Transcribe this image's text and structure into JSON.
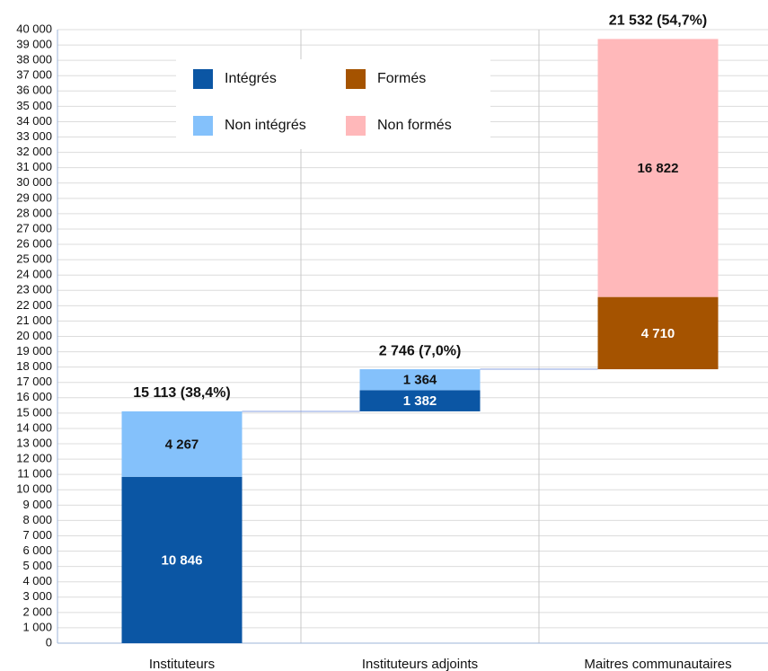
{
  "chart_data": {
    "type": "waterfall",
    "categories": [
      "Instituteurs",
      "Instituteurs adjoints",
      "Maitres communautaires"
    ],
    "series": [
      {
        "name": "Intégrés",
        "color": "#0b56a4",
        "values": [
          10846,
          1382,
          null
        ],
        "value_labels": [
          "10 846",
          "1 382",
          null
        ]
      },
      {
        "name": "Formés",
        "color": "#a55300",
        "values": [
          null,
          null,
          4710
        ],
        "value_labels": [
          null,
          null,
          "4 710"
        ]
      },
      {
        "name": "Non intégrés",
        "color": "#84c1fb",
        "values": [
          4267,
          1364,
          null
        ],
        "value_labels": [
          "4 267",
          "1 364",
          null
        ]
      },
      {
        "name": "Non formés",
        "color": "#ffb8ba",
        "values": [
          null,
          null,
          16822
        ],
        "value_labels": [
          null,
          null,
          "16 822"
        ]
      }
    ],
    "totals": [
      15113,
      2746,
      21532
    ],
    "total_labels": [
      "15 113 (38,4%)",
      "2 746 (7,0%)",
      "21 532 (54,7%)"
    ],
    "ylim": [
      0,
      40000
    ],
    "yticks": [
      0,
      {
        "value": 1000,
        "label": "1 000"
      },
      {
        "value": 2000,
        "label": "2 000"
      },
      {
        "value": 3000,
        "label": "3 000"
      },
      {
        "value": 4000,
        "label": "4 000"
      },
      {
        "value": 5000,
        "label": "5 000"
      },
      {
        "value": 6000,
        "label": "6 000"
      },
      {
        "value": 7000,
        "label": "7 000"
      },
      {
        "value": 8000,
        "label": "8 000"
      },
      {
        "value": 9000,
        "label": "9 000"
      },
      {
        "value": 10000,
        "label": "10 000"
      },
      {
        "value": 11000,
        "label": "11 000"
      },
      {
        "value": 12000,
        "label": "12 000"
      },
      {
        "value": 13000,
        "label": "13 000"
      },
      {
        "value": 14000,
        "label": "14 000"
      },
      {
        "value": 15000,
        "label": "15 000"
      },
      {
        "value": 16000,
        "label": "16 000"
      },
      {
        "value": 17000,
        "label": "17 000"
      },
      {
        "value": 18000,
        "label": "18 000"
      },
      {
        "value": 19000,
        "label": "19 000"
      },
      {
        "value": 20000,
        "label": "20 000"
      },
      {
        "value": 21000,
        "label": "21 000"
      },
      {
        "value": 22000,
        "label": "22 000"
      },
      {
        "value": 23000,
        "label": "23 000"
      },
      {
        "value": 24000,
        "label": "24 000"
      },
      {
        "value": 25000,
        "label": "25 000"
      },
      {
        "value": 26000,
        "label": "26 000"
      },
      {
        "value": 27000,
        "label": "27 000"
      },
      {
        "value": 28000,
        "label": "28 000"
      },
      {
        "value": 29000,
        "label": "29 000"
      },
      {
        "value": 30000,
        "label": "30 000"
      },
      {
        "value": 31000,
        "label": "31 000"
      },
      {
        "value": 32000,
        "label": "32 000"
      },
      {
        "value": 33000,
        "label": "33 000"
      },
      {
        "value": 34000,
        "label": "34 000"
      },
      {
        "value": 35000,
        "label": "35 000"
      },
      {
        "value": 36000,
        "label": "36 000"
      },
      {
        "value": 37000,
        "label": "37 000"
      },
      {
        "value": 38000,
        "label": "38 000"
      },
      {
        "value": 39000,
        "label": "39 000"
      },
      {
        "value": 40000,
        "label": "40 000"
      }
    ],
    "grid": true
  }
}
